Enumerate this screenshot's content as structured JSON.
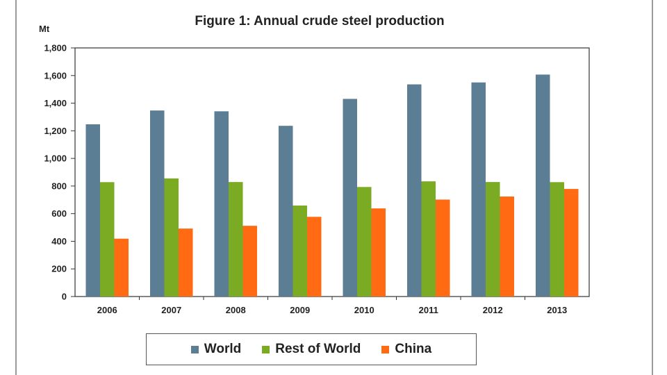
{
  "chart_data": {
    "type": "bar",
    "title": "Figure 1: Annual crude steel production",
    "ylabel": "Mt",
    "xlabel": "",
    "categories": [
      "2006",
      "2007",
      "2008",
      "2009",
      "2010",
      "2011",
      "2012",
      "2013"
    ],
    "ylim": [
      0,
      1800
    ],
    "yticks": [
      0,
      200,
      400,
      600,
      800,
      1000,
      1200,
      1400,
      1600,
      1800
    ],
    "ytick_labels": [
      "0",
      "200",
      "400",
      "600",
      "800",
      "1,000",
      "1,200",
      "1,400",
      "1,600",
      "1,800"
    ],
    "grid": false,
    "legend_position": "bottom",
    "series": [
      {
        "name": "World",
        "color": "#5b7e95",
        "values": [
          1247,
          1347,
          1341,
          1236,
          1431,
          1536,
          1550,
          1607
        ]
      },
      {
        "name": "Rest of World",
        "color": "#7aab23",
        "values": [
          828,
          855,
          829,
          659,
          793,
          834,
          829,
          828
        ]
      },
      {
        "name": "China",
        "color": "#ff6a13",
        "values": [
          419,
          492,
          512,
          577,
          638,
          702,
          724,
          779
        ]
      }
    ]
  }
}
